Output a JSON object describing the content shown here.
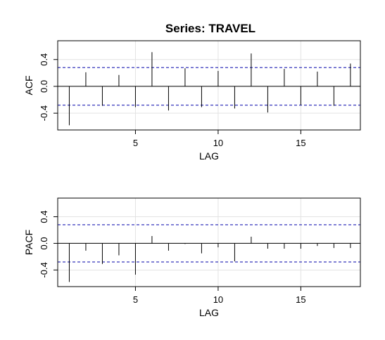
{
  "chart_data": [
    {
      "type": "bar",
      "title": "Series:  TRAVEL",
      "xlabel": "LAG",
      "ylabel": "ACF",
      "xlim": [
        0.3,
        18.6
      ],
      "ylim": [
        -0.65,
        0.68
      ],
      "xticks": [
        5,
        10,
        15
      ],
      "yticks": [
        -0.4,
        0.0,
        0.4
      ],
      "ytick_labels": [
        "-0.4",
        "0.0",
        "0.4"
      ],
      "grid": true,
      "confidence_band": 0.28,
      "confidence_color": "#1f1fb4",
      "lags": [
        1,
        2,
        3,
        4,
        5,
        6,
        7,
        8,
        9,
        10,
        11,
        12,
        13,
        14,
        15,
        16,
        17,
        18
      ],
      "values": [
        -0.58,
        0.21,
        -0.29,
        0.17,
        -0.31,
        0.51,
        -0.36,
        0.27,
        -0.31,
        0.23,
        -0.33,
        0.49,
        -0.39,
        0.26,
        -0.28,
        0.22,
        -0.29,
        0.34
      ]
    },
    {
      "type": "bar",
      "title": "",
      "xlabel": "LAG",
      "ylabel": "PACF",
      "xlim": [
        0.3,
        18.6
      ],
      "ylim": [
        -0.65,
        0.68
      ],
      "xticks": [
        5,
        10,
        15
      ],
      "yticks": [
        -0.4,
        0.0,
        0.4
      ],
      "ytick_labels": [
        "-0.4",
        "0.0",
        "0.4"
      ],
      "grid": true,
      "confidence_band": 0.28,
      "confidence_color": "#1f1fb4",
      "lags": [
        1,
        2,
        3,
        4,
        5,
        6,
        7,
        8,
        9,
        10,
        11,
        12,
        13,
        14,
        15,
        16,
        17,
        18
      ],
      "values": [
        -0.58,
        -0.11,
        -0.31,
        -0.18,
        -0.47,
        0.11,
        -0.11,
        -0.01,
        -0.15,
        -0.06,
        -0.27,
        0.1,
        -0.08,
        -0.08,
        -0.08,
        -0.04,
        -0.07,
        -0.07
      ]
    }
  ]
}
